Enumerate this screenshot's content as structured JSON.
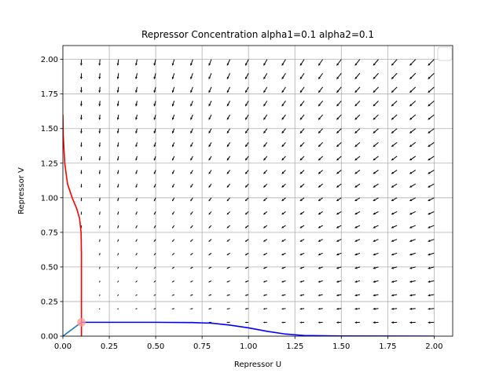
{
  "chart_data": {
    "type": "line",
    "title": "Repressor Concentration alpha1=0.1 alpha2=0.1",
    "xlabel": "Repressor U",
    "ylabel": "Repressor V",
    "xlim": [
      0.0,
      2.1
    ],
    "ylim": [
      0.0,
      2.1
    ],
    "xticks": [
      "0.00",
      "0.25",
      "0.50",
      "0.75",
      "1.00",
      "1.25",
      "1.50",
      "1.75",
      "2.00"
    ],
    "yticks": [
      "0.00",
      "0.25",
      "0.50",
      "0.75",
      "1.00",
      "1.25",
      "1.50",
      "1.75",
      "2.00"
    ],
    "grid": true,
    "legend": {
      "placement": "top-right",
      "entries": []
    },
    "quiver": {
      "alpha1": 0.1,
      "alpha2": 0.1,
      "grid_range": [
        0.1,
        2.0
      ],
      "grid_n": 20
    },
    "series": [
      {
        "color": "#ff0000",
        "x": [
          0.0,
          0.002,
          0.01,
          0.025,
          0.05,
          0.075,
          0.09,
          0.098,
          0.1,
          0.1,
          0.1
        ],
        "y": [
          1.6,
          1.45,
          1.25,
          1.1,
          1.0,
          0.92,
          0.85,
          0.75,
          0.6,
          0.3,
          0.0
        ]
      },
      {
        "color": "#0000ff",
        "x": [
          0.1,
          0.3,
          0.5,
          0.7,
          0.8,
          0.9,
          1.0,
          1.1,
          1.2,
          1.3,
          1.5,
          2.0
        ],
        "y": [
          0.1,
          0.1,
          0.1,
          0.098,
          0.094,
          0.08,
          0.06,
          0.035,
          0.015,
          0.005,
          0.001,
          0.0
        ]
      },
      {
        "color": "#1f77b4",
        "x": [
          0.0,
          0.1
        ],
        "y": [
          0.0,
          0.1
        ]
      }
    ],
    "marker": {
      "x": 0.1,
      "y": 0.1,
      "color": "#ff9999"
    }
  }
}
